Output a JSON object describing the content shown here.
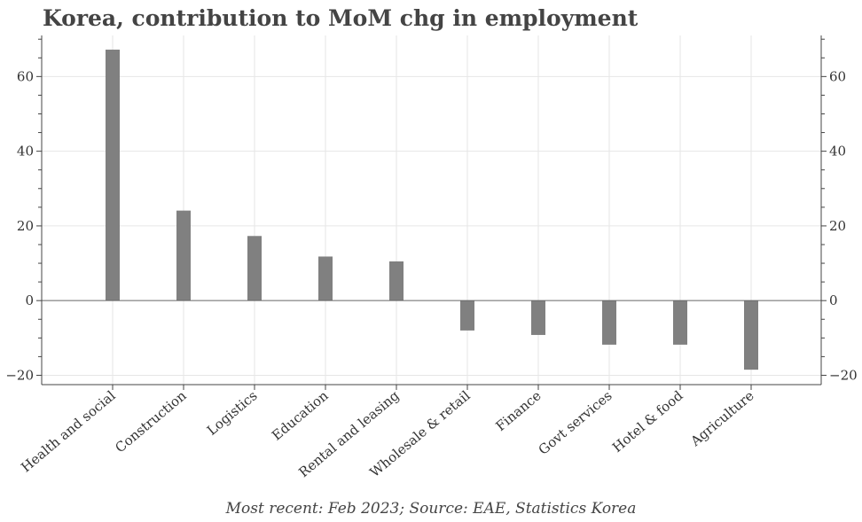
{
  "chart_data": {
    "type": "bar",
    "title": "Korea, contribution to MoM chg in employment",
    "xlabel": "",
    "ylabel": "",
    "categories": [
      "Health and social",
      "Construction",
      "Logistics",
      "Education",
      "Rental and leasing",
      "Wholesale & retail",
      "Finance",
      "Govt services",
      "Hotel & food",
      "Agriculture"
    ],
    "values": [
      67.2,
      24.1,
      17.3,
      11.8,
      10.5,
      -8.0,
      -9.2,
      -11.8,
      -11.8,
      -18.5
    ],
    "ylim": [
      -22.5,
      71
    ],
    "yticks": [
      -20,
      0,
      20,
      40,
      60
    ],
    "grid": true,
    "secondary_axis": true,
    "bar_color": "#808080",
    "footnote": "Most recent: Feb 2023; Source: EAE, Statistics Korea"
  }
}
